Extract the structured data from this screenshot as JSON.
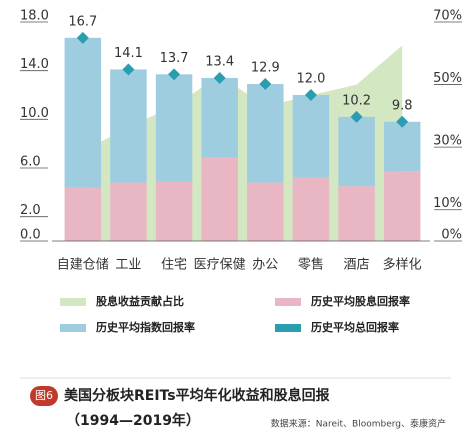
{
  "chart_data": {
    "type": "bar",
    "title": "美国分板块REITs平均年化收益和股息回报",
    "subtitle": "（1994—2019年）",
    "figure_label": "图6",
    "source": "数据来源：Nareit、Bloomberg、泰康资产",
    "categories": [
      "自建仓储",
      "工业",
      "住宅",
      "医疗保健",
      "办公",
      "零售",
      "酒店",
      "多样化"
    ],
    "series": [
      {
        "name": "股息收益贡献占比",
        "type": "area",
        "axis": "y2",
        "color": "#d3e8c2",
        "values": [
          28.5,
          36.6,
          43,
          53,
          43,
          46.6,
          50,
          62.5
        ]
      },
      {
        "name": "历史平均股息回报率",
        "type": "bar",
        "color": "#e9b6c3",
        "values": [
          4.4,
          4.8,
          4.9,
          6.9,
          4.8,
          5.2,
          4.5,
          5.7
        ]
      },
      {
        "name": "历史平均指数回报率",
        "type": "bar",
        "color": "#9fcde0",
        "values": [
          12.3,
          9.3,
          8.8,
          6.5,
          8.1,
          6.8,
          5.7,
          4.1
        ]
      },
      {
        "name": "历史平均总回报率",
        "type": "scatter",
        "color": "#2a9db0",
        "values": [
          16.7,
          14.1,
          13.7,
          13.4,
          12.9,
          12,
          10.2,
          9.8
        ],
        "value_labels": [
          "16.7",
          "14.1",
          "13.7",
          "13.4",
          "12.9",
          "12.0",
          "10.2",
          "9.8"
        ]
      }
    ],
    "ylim": [
      0,
      18
    ],
    "yticks": [
      {
        "value": 0,
        "label": "0.0"
      },
      {
        "value": 2,
        "label": "2.0"
      },
      {
        "value": 6,
        "label": "6.0"
      },
      {
        "value": 10,
        "label": "10.0"
      },
      {
        "value": 14,
        "label": "14.0"
      },
      {
        "value": 18,
        "label": "18.0"
      }
    ],
    "y2lim": [
      0,
      70
    ],
    "y2ticks": [
      {
        "value": 0,
        "label": "0%"
      },
      {
        "value": 10,
        "label": "10%"
      },
      {
        "value": 30,
        "label": "30%"
      },
      {
        "value": 50,
        "label": "50%"
      },
      {
        "value": 70,
        "label": "70%"
      }
    ]
  }
}
